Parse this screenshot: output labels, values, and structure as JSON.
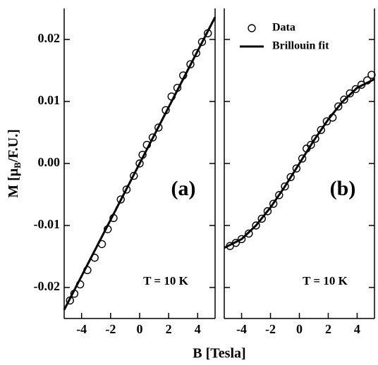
{
  "xlabel": "B [Tesla]",
  "ylabel": [
    "M [μ",
    "B",
    "/F.U.]"
  ],
  "chart_data": [
    {
      "type": "scatter",
      "annotation": "(a)",
      "temperature": "T = 10 K",
      "xlim": [
        -5.2,
        5.2
      ],
      "ylim": [
        -0.025,
        0.025
      ],
      "xticks": [
        -4,
        -2,
        0,
        2,
        4
      ],
      "yticks": [
        -0.02,
        -0.01,
        {
          "value": 0,
          "label": "0.00"
        },
        0.01,
        0.02
      ],
      "color": "#000000",
      "series": [
        {
          "name": "Data",
          "marker": "circle",
          "x": [
            -4.8,
            -4.5,
            -4.1,
            -3.6,
            -3.1,
            -2.6,
            -2.2,
            -1.8,
            -1.3,
            -0.9,
            -0.4,
            0,
            0.2,
            0.5,
            0.9,
            1.3,
            1.8,
            2.2,
            2.6,
            3.0,
            3.5,
            3.9,
            4.3,
            4.7
          ],
          "values": [
            -0.0221,
            -0.021,
            -0.0195,
            -0.0172,
            -0.0152,
            -0.013,
            -0.0106,
            -0.0088,
            -0.0058,
            -0.0042,
            -0.002,
            0.0,
            0.0014,
            0.003,
            0.0042,
            0.0058,
            0.0086,
            0.0108,
            0.0122,
            0.0142,
            0.016,
            0.0178,
            0.0196,
            0.021
          ]
        },
        {
          "name": "Brillouin fit",
          "marker": "line",
          "x": [
            -5.2,
            0,
            5.2
          ],
          "values": [
            -0.0236,
            0,
            0.0236
          ]
        }
      ]
    },
    {
      "type": "scatter",
      "annotation": "(b)",
      "temperature": "T = 10 K",
      "legend": "upper left",
      "xlim": [
        -5.2,
        5.2
      ],
      "ylim": [
        -0.025,
        0.025
      ],
      "xticks": [
        -4,
        -2,
        0,
        2,
        4
      ],
      "yticks": [
        -0.02,
        -0.01,
        0,
        0.01,
        0.02
      ],
      "color": "#000000",
      "series": [
        {
          "name": "Data",
          "marker": "circle",
          "x": [
            -4.8,
            -4.4,
            -4.0,
            -3.5,
            -3.0,
            -2.6,
            -2.2,
            -1.8,
            -1.4,
            -1.0,
            -0.6,
            -0.2,
            0.2,
            0.5,
            0.8,
            1.1,
            1.5,
            1.9,
            2.3,
            2.7,
            3.1,
            3.5,
            3.9,
            4.3,
            4.7,
            5.0
          ],
          "values": [
            -0.0133,
            -0.0128,
            -0.0122,
            -0.0113,
            -0.01,
            -0.0089,
            -0.0077,
            -0.0065,
            -0.0051,
            -0.0037,
            -0.0022,
            -0.0008,
            0.0008,
            0.0024,
            0.003,
            0.004,
            0.0054,
            0.0068,
            0.0074,
            0.0092,
            0.0103,
            0.0113,
            0.012,
            0.0127,
            0.0134,
            0.0143
          ]
        },
        {
          "name": "Brillouin fit",
          "marker": "line",
          "x": [
            -5.2,
            -4,
            -3,
            -2,
            -1,
            0,
            1,
            2,
            3,
            4,
            5.2
          ],
          "values": [
            -0.0136,
            -0.0122,
            -0.01,
            -0.0071,
            -0.0037,
            0,
            0.0037,
            0.0071,
            0.01,
            0.0122,
            0.0136
          ]
        }
      ]
    }
  ]
}
